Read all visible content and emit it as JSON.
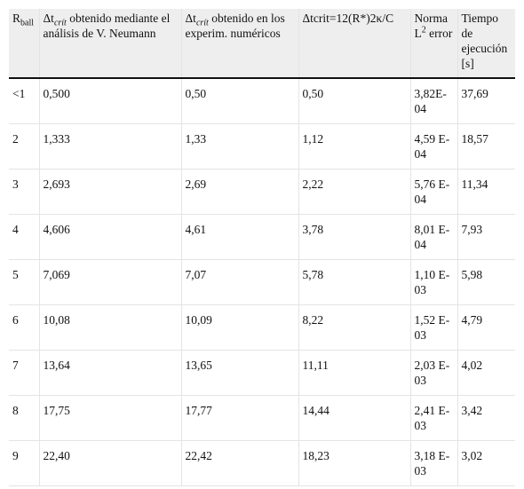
{
  "table": {
    "headers": [
      {
        "main": "R",
        "sub": "ball"
      },
      {
        "main": "Δt",
        "sub": "crít",
        "rest": " obtenido mediante el análisis de V. Neumann"
      },
      {
        "main": "Δt",
        "sub": "crít",
        "rest": " obtenido en los experim. numéricos"
      },
      {
        "main": "Δtcrit=12(R*)2κ/C"
      },
      {
        "main": "Norma L",
        "sup": "2",
        "rest": " error"
      },
      {
        "main": "Tiempo de ejecución [s]"
      }
    ],
    "rows": [
      [
        "<1",
        "0,500",
        "0,50",
        "0,50",
        "3,82E-04",
        "37,69"
      ],
      [
        "2",
        "1,333",
        "1,33",
        "1,12",
        "4,59 E-04",
        "18,57"
      ],
      [
        "3",
        "2,693",
        "2,69",
        "2,22",
        "5,76 E-04",
        "11,34"
      ],
      [
        "4",
        "4,606",
        "4,61",
        "3,78",
        "8,01 E-04",
        "7,93"
      ],
      [
        "5",
        "7,069",
        "7,07",
        "5,78",
        "1,10 E-03",
        "5,98"
      ],
      [
        "6",
        "10,08",
        "10,09",
        "8,22",
        "1,52 E-03",
        "4,79"
      ],
      [
        "7",
        "13,64",
        "13,65",
        "11,11",
        "2,03 E-03",
        "4,02"
      ],
      [
        "8",
        "17,75",
        "17,77",
        "14,44",
        "2,41 E-03",
        "3,42"
      ],
      [
        "9",
        "22,40",
        "22,42",
        "18,23",
        "3,18 E-03",
        "3,02"
      ]
    ]
  }
}
